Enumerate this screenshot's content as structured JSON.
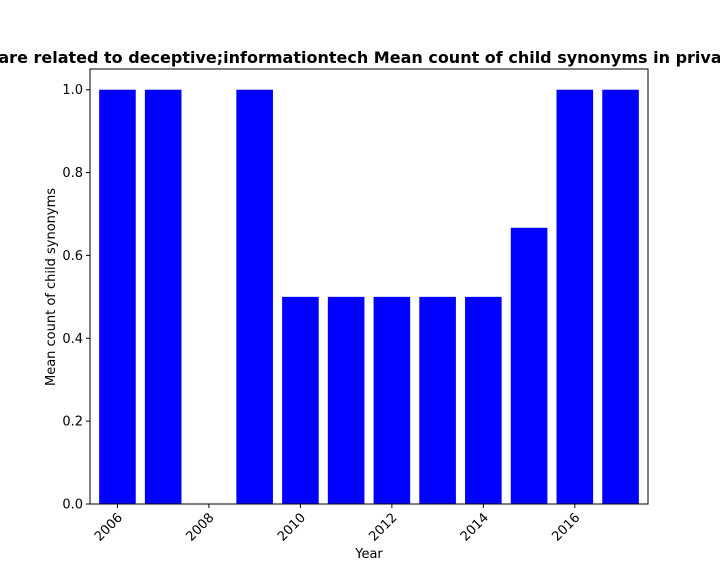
{
  "chart_data": {
    "type": "bar",
    "title": "are related to deceptive;informationtech Mean count of child synonyms in priva",
    "xlabel": "Year",
    "ylabel": "Mean count of child synonyms",
    "x": [
      2006,
      2007,
      2008,
      2009,
      2010,
      2011,
      2012,
      2013,
      2014,
      2015,
      2016,
      2017
    ],
    "values": [
      1.0,
      1.0,
      0.0,
      1.0,
      0.5,
      0.5,
      0.5,
      0.5,
      0.5,
      0.6667,
      1.0,
      1.0
    ],
    "xlim": [
      2005.4,
      2017.6
    ],
    "ylim": [
      0,
      1.05
    ],
    "xticks": [
      2006,
      2008,
      2010,
      2012,
      2014,
      2016
    ],
    "yticks": [
      0.0,
      0.2,
      0.4,
      0.6,
      0.8,
      1.0
    ],
    "ytick_labels": [
      "0.0",
      "0.2",
      "0.4",
      "0.6",
      "0.8",
      "1.0"
    ],
    "bar_color": "#0000ff",
    "grid": false,
    "legend": "none"
  }
}
